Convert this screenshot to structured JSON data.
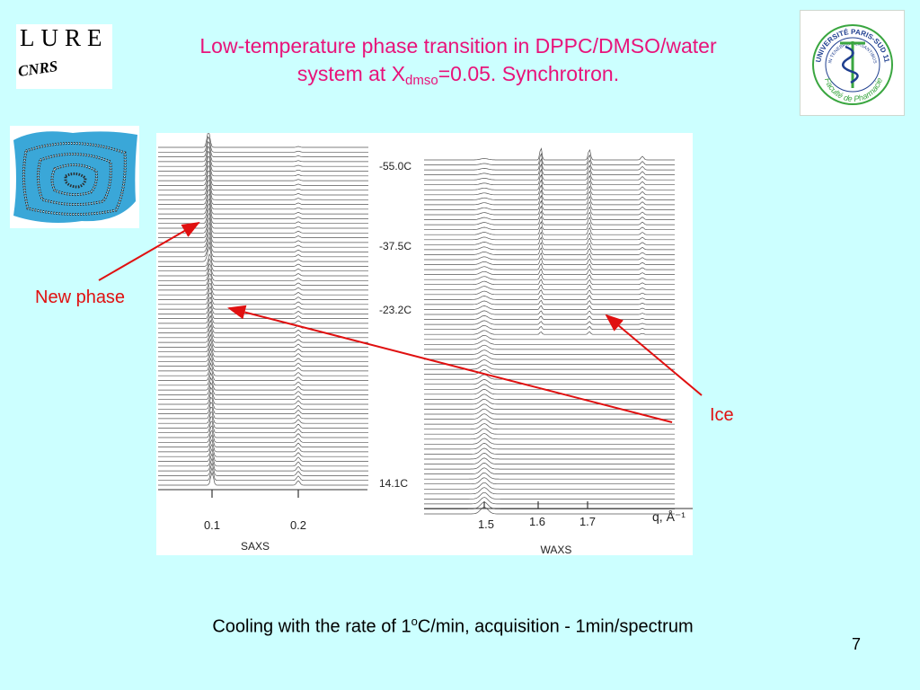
{
  "lure_logo": {
    "text": "LURE",
    "sub_text": "CNRS"
  },
  "title": {
    "line1": "Low-temperature phase transition in DPPC/DMSO/water",
    "line2_prefix": "system at X",
    "line2_subscript": "dmso",
    "line2_suffix": "=0.05. Synchrotron."
  },
  "univ_logo": {
    "top_text": "UNIVERSITÉ PARIS-SUD 11",
    "motto": "IN TENEBRIS VERSANTIBUS",
    "bottom_text": "Faculté de Pharmacie"
  },
  "figure": {
    "temperatures": [
      "-55.0C",
      "-37.5C",
      "-23.2C",
      "14.1C"
    ],
    "saxs_ticks": [
      "0.1",
      "0.2"
    ],
    "waxs_ticks": [
      "1.5",
      "1.6",
      "1.7"
    ],
    "q_unit": "q, Å⁻¹",
    "saxs_label": "SAXS",
    "waxs_label": "WAXS"
  },
  "annotations": {
    "new_phase": "New phase",
    "ice": "Ice"
  },
  "caption": {
    "prefix": "Cooling with the rate of 1",
    "superscript": "o",
    "suffix": "C/min, acquisition - 1min/spectrum"
  },
  "page_number": "7",
  "colors": {
    "background": "#ccffff",
    "title": "#e8137a",
    "annotation": "#e01010",
    "univ_green": "#3aa640",
    "univ_blue": "#1f3f8f"
  }
}
